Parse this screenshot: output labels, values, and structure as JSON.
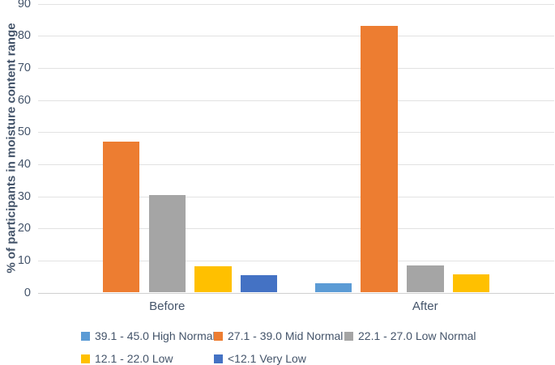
{
  "chart_data": {
    "type": "bar",
    "title": "",
    "xlabel": "",
    "ylabel": "% of participants in moisture content range",
    "categories": [
      "Before",
      "After"
    ],
    "series": [
      {
        "name": "39.1 - 45.0 High Normal",
        "color": "#5B9BD5",
        "values": [
          0,
          3
        ]
      },
      {
        "name": "27.1 - 39.0 Mid Normal",
        "color": "#ED7D31",
        "values": [
          47,
          83
        ]
      },
      {
        "name": "22.1 - 27.0 Low Normal",
        "color": "#A5A5A5",
        "values": [
          30.5,
          8.5
        ]
      },
      {
        "name": "12.1 - 22.0 Low",
        "color": "#FFC000",
        "values": [
          8.2,
          5.6
        ]
      },
      {
        "name": "<12.1 Very Low",
        "color": "#4472C4",
        "values": [
          5.5,
          0
        ]
      }
    ],
    "ylim": [
      0,
      90
    ],
    "yticks": [
      0,
      10,
      20,
      30,
      40,
      50,
      60,
      70,
      80,
      90
    ],
    "grid": true,
    "legend_position": "bottom"
  },
  "colors": {
    "axis_text": "#44546A",
    "gridline": "#E2E2E2",
    "baseline": "#D0D0D0",
    "background": "#FFFFFF"
  }
}
